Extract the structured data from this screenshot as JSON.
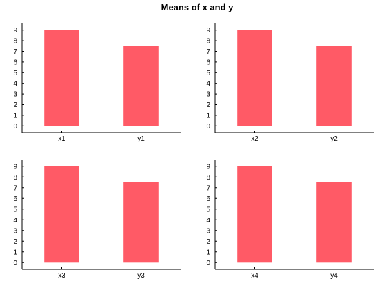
{
  "title": "Means of x and y",
  "colors": {
    "bar": "#ff5a66",
    "axis": "#000000",
    "background": "#ffffff"
  },
  "chart_data": [
    {
      "type": "bar",
      "categories": [
        "x1",
        "y1"
      ],
      "values": [
        9.0,
        7.5
      ],
      "ylim": [
        -0.5,
        9.5
      ],
      "yticks": [
        0,
        1,
        2,
        3,
        4,
        5,
        6,
        7,
        8,
        9
      ],
      "yticklabels": [
        "0",
        "1",
        "2",
        "3",
        "4",
        "5",
        "6",
        "7",
        "8",
        "9"
      ],
      "grid": false
    },
    {
      "type": "bar",
      "categories": [
        "x2",
        "y2"
      ],
      "values": [
        9.0,
        7.5
      ],
      "ylim": [
        -0.5,
        9.5
      ],
      "yticks": [
        0,
        1,
        2,
        3,
        4,
        5,
        6,
        7,
        8,
        9
      ],
      "yticklabels": [
        "0",
        "1",
        "2",
        "3",
        "4",
        "5",
        "6",
        "7",
        "8",
        "9"
      ],
      "grid": false
    },
    {
      "type": "bar",
      "categories": [
        "x3",
        "y3"
      ],
      "values": [
        9.0,
        7.5
      ],
      "ylim": [
        -0.5,
        9.5
      ],
      "yticks": [
        0,
        1,
        2,
        3,
        4,
        5,
        6,
        7,
        8,
        9
      ],
      "yticklabels": [
        "0",
        "1",
        "2",
        "3",
        "4",
        "5",
        "6",
        "7",
        "8",
        "9"
      ],
      "grid": false
    },
    {
      "type": "bar",
      "categories": [
        "x4",
        "y4"
      ],
      "values": [
        9.0,
        7.5
      ],
      "ylim": [
        -0.5,
        9.5
      ],
      "yticks": [
        0,
        1,
        2,
        3,
        4,
        5,
        6,
        7,
        8,
        9
      ],
      "yticklabels": [
        "0",
        "1",
        "2",
        "3",
        "4",
        "5",
        "6",
        "7",
        "8",
        "9"
      ],
      "grid": false
    }
  ]
}
